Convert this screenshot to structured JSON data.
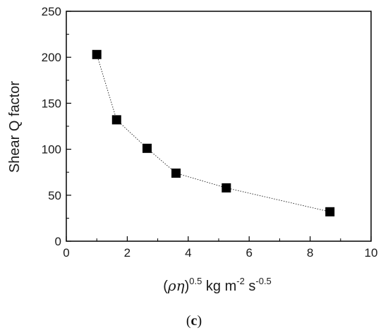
{
  "chart_data": {
    "type": "scatter",
    "connected": true,
    "line_style": "dotted",
    "marker": "square",
    "x": [
      1.0,
      1.65,
      2.65,
      3.6,
      5.25,
      8.65
    ],
    "y": [
      203,
      132,
      101,
      74,
      58,
      32
    ],
    "xlim": [
      0,
      10
    ],
    "ylim": [
      0,
      250
    ],
    "x_ticks": [
      0,
      2,
      4,
      6,
      8,
      10
    ],
    "y_ticks": [
      0,
      50,
      100,
      150,
      200,
      250
    ],
    "x_tick_labels": [
      "0",
      "2",
      "4",
      "6",
      "8",
      "10"
    ],
    "y_tick_labels": [
      "0",
      "50",
      "100",
      "150",
      "200",
      "250"
    ],
    "xlabel": "(ρη)0.5 kg m-2 s-0.5",
    "xlabel_parts": {
      "open": "(",
      "symbols": "ρη",
      "close": ")",
      "exp1": "0.5",
      "unit1": " kg m",
      "exp2": "-2",
      "unit2": " s",
      "exp3": "-0.5"
    },
    "ylabel": "Shear Q factor",
    "grid": false,
    "legend": "none"
  },
  "panel_label": {
    "open": "(",
    "letter": "c",
    "close": ")"
  },
  "colors": {
    "marker": "#000000",
    "line": "#333333",
    "axis": "#000000"
  }
}
